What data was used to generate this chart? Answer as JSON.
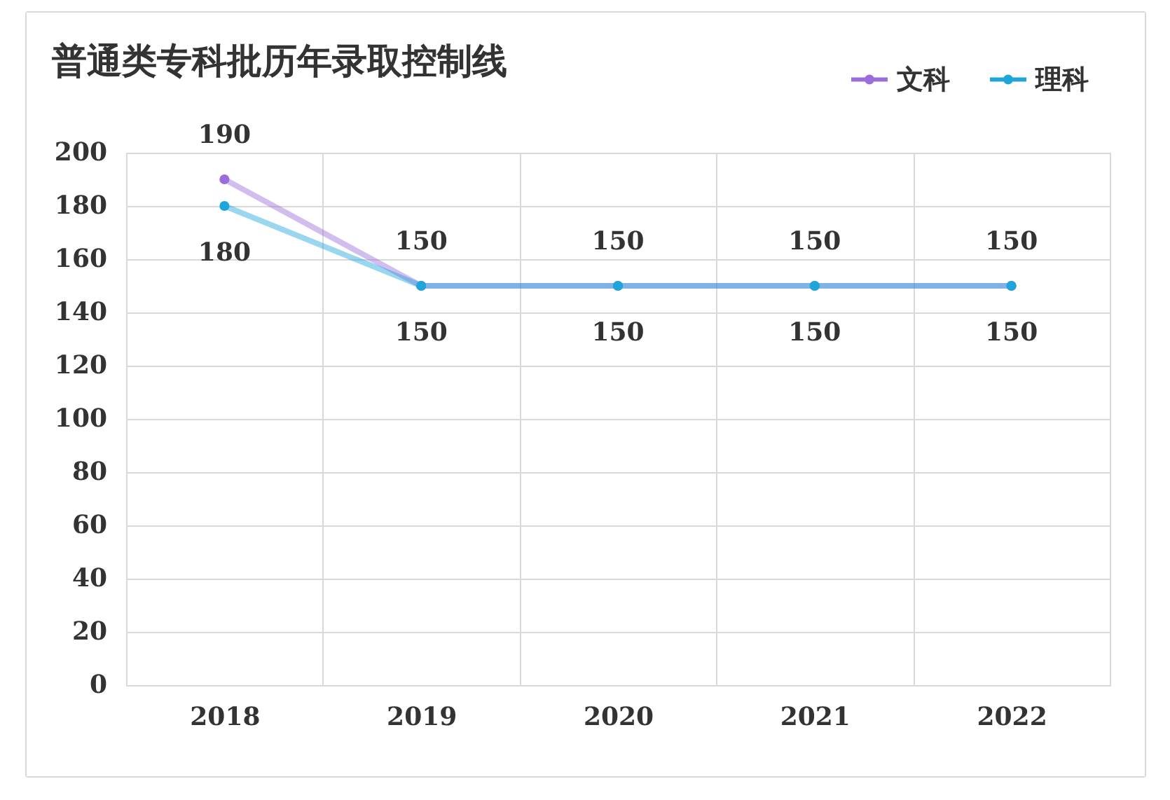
{
  "chart_data": {
    "type": "line",
    "title": "普通类专科批历年录取控制线",
    "categories": [
      "2018",
      "2019",
      "2020",
      "2021",
      "2022"
    ],
    "series": [
      {
        "name": "文科",
        "color": "#9b6ddb",
        "values": [
          190,
          150,
          150,
          150,
          150
        ]
      },
      {
        "name": "理科",
        "color": "#1ea5dc",
        "values": [
          180,
          150,
          150,
          150,
          150
        ]
      }
    ],
    "ylim": [
      0,
      200
    ],
    "yticks": [
      0,
      20,
      40,
      60,
      80,
      100,
      120,
      140,
      160,
      180,
      200
    ],
    "grid": true,
    "legend": "top right",
    "marker": "circle",
    "line_style": "solid",
    "data_labels": true
  }
}
